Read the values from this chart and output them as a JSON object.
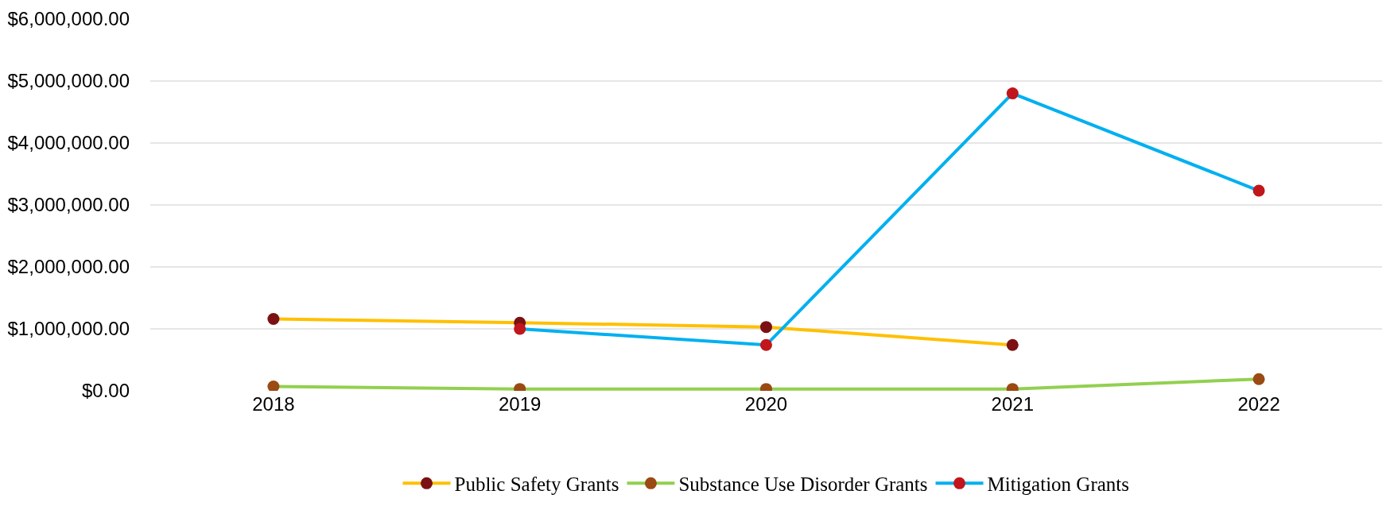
{
  "chart_data": {
    "type": "line",
    "categories": [
      "2018",
      "2019",
      "2020",
      "2021",
      "2022"
    ],
    "series": [
      {
        "name": "Public Safety Grants",
        "color": "#ffc000",
        "colors": [
          "#7b1113",
          "#7b1113",
          "#7b1113",
          "#7b1113",
          "#7b1113"
        ],
        "values": [
          1160000,
          1100000,
          1030000,
          740000,
          null
        ]
      },
      {
        "name": "Substance Use Disorder Grants",
        "color": "#92d050",
        "colors": [
          "#9a4a12",
          "#9a4a12",
          "#9a4a12",
          "#9a4a12",
          "#9a4a12"
        ],
        "values": [
          70000,
          30000,
          30000,
          30000,
          190000
        ]
      },
      {
        "name": "Mitigation Grants",
        "color": "#00b0f0",
        "colors": [
          "#c0161c",
          "#c0161c",
          "#c0161c",
          "#c0161c",
          "#c0161c"
        ],
        "values": [
          null,
          1000000,
          740000,
          4800000,
          3230000
        ]
      }
    ],
    "ylim": [
      0,
      6000000
    ],
    "yticks": [
      {
        "value": 0,
        "label": "$0.00"
      },
      {
        "value": 1000000,
        "label": "$1,000,000.00"
      },
      {
        "value": 2000000,
        "label": "$2,000,000.00"
      },
      {
        "value": 3000000,
        "label": "$3,000,000.00"
      },
      {
        "value": 4000000,
        "label": "$4,000,000.00"
      },
      {
        "value": 5000000,
        "label": "$5,000,000.00"
      },
      {
        "value": 6000000,
        "label": "$6,000,000.00"
      }
    ],
    "grid": "y",
    "legend": "bottom",
    "marker": "circle",
    "line_style": "solid"
  }
}
